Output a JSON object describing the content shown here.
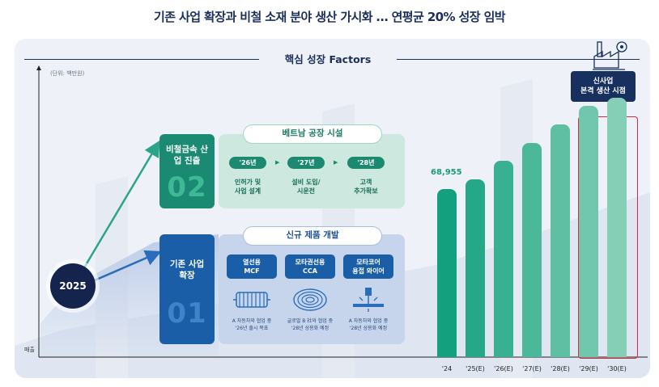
{
  "title": "기존 사업 확장과 비철 소재 분야 생산 가시화 … 연평균 20% 성장 임박",
  "section_title": "핵심 성장 Factors",
  "unit_label": "(단위: 백만원)",
  "y_axis_label": "매출",
  "start_year": "2025",
  "track_new": {
    "heading": "비철금속 산업 진출",
    "number": "02",
    "pill": "베트남 공장 시설",
    "steps": [
      {
        "year": "'26년",
        "text1": "인허가 및",
        "text2": "사업 설계"
      },
      {
        "year": "'27년",
        "text1": "설비 도입/",
        "text2": "시운전"
      },
      {
        "year": "'28년",
        "text1": "고객",
        "text2": "추가확보"
      }
    ]
  },
  "track_existing": {
    "heading": "기존 사업 확장",
    "number": "01",
    "pill": "신규 제품 개발",
    "products": [
      {
        "name1": "열선용",
        "name2": "MCF",
        "icon": "heating-coil-icon",
        "note1": "A 자동차와 협업 중",
        "note2": "'26년 출시 목표"
      },
      {
        "name1": "모타권선용",
        "name2": "CCA",
        "icon": "wire-coil-icon",
        "note1": "글로벌 B 社와 협업 중",
        "note2": "'28년 상용화 예정"
      },
      {
        "name1": "모타코어",
        "name2": "용접 와이어",
        "icon": "welding-wire-icon",
        "note1": "A 자동차와 협업 중",
        "note2": "'28년 상용화 예정"
      }
    ]
  },
  "new_business_label": [
    "신사업",
    "본격 생산 시점"
  ],
  "colors": {
    "navy": "#15244d",
    "green_dark": "#12a07e",
    "green_light": "#84cfb6",
    "highlight_red": "#d62b3a"
  },
  "chart_data": {
    "type": "bar",
    "categories": [
      "'24",
      "'25(E)",
      "'26(E)",
      "'27(E)",
      "'28(E)",
      "'29(E)",
      "'30(E)"
    ],
    "values": [
      68955,
      73000,
      80500,
      88000,
      95500,
      103000,
      106500
    ],
    "data_labels": [
      "68,955",
      "",
      "",
      "",
      "",
      "",
      ""
    ],
    "highlight_categories": [
      "'29(E)",
      "'30(E)"
    ],
    "title": "",
    "xlabel": "",
    "ylabel": "매출",
    "ylim": [
      0,
      120000
    ]
  }
}
